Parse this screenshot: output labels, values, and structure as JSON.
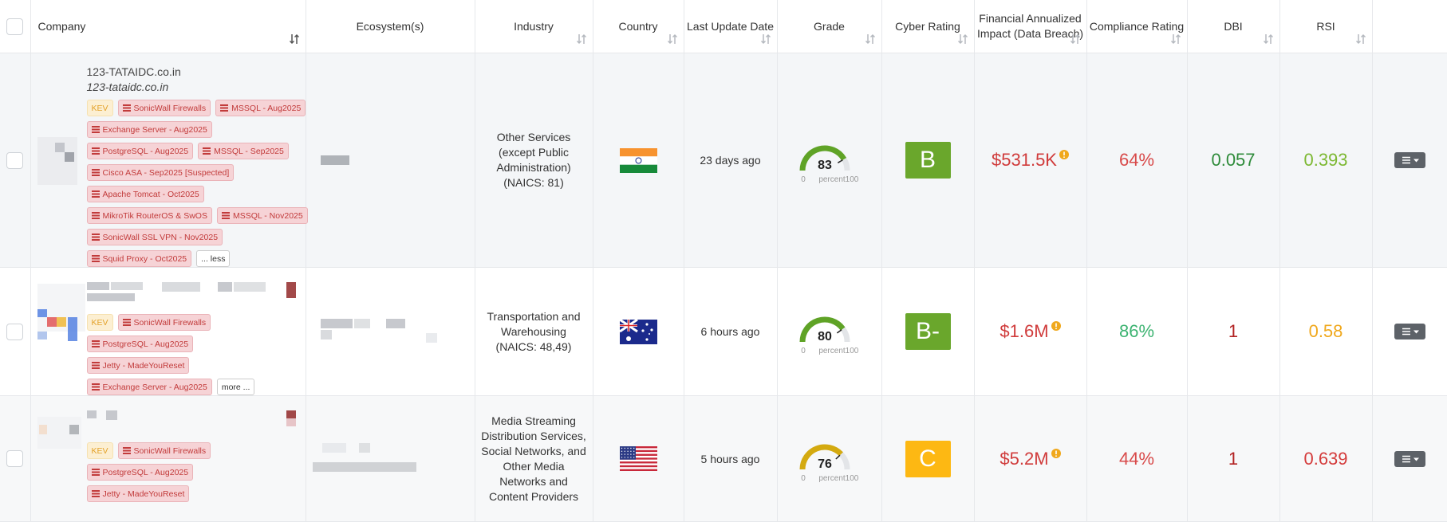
{
  "header": {
    "columns": [
      "Company",
      "Ecosystem(s)",
      "Industry",
      "Country",
      "Last Update Date",
      "Grade",
      "Cyber Rating",
      "Financial Annualized Impact (Data Breach)",
      "Compliance Rating",
      "DBI",
      "RSI"
    ]
  },
  "gauge_scale": {
    "min": 0,
    "unit": "percent",
    "max": 100
  },
  "rows": [
    {
      "company": {
        "name": "123-TATAIDC.co.in",
        "domain": "123-tataidc.co.in",
        "tags": [
          [
            {
              "text": "KEV",
              "kind": "kev"
            },
            {
              "text": "SonicWall Firewalls",
              "kind": "vuln"
            },
            {
              "text": "MSSQL - Aug2025",
              "kind": "vuln"
            }
          ],
          [
            {
              "text": "Exchange Server - Aug2025",
              "kind": "vuln"
            }
          ],
          [
            {
              "text": "PostgreSQL - Aug2025",
              "kind": "vuln"
            },
            {
              "text": "MSSQL - Sep2025",
              "kind": "vuln"
            }
          ],
          [
            {
              "text": "Cisco ASA - Sep2025 [Suspected]",
              "kind": "vuln"
            }
          ],
          [
            {
              "text": "Apache Tomcat - Oct2025",
              "kind": "vuln"
            }
          ],
          [
            {
              "text": "MikroTik RouterOS & SwOS",
              "kind": "vuln"
            },
            {
              "text": "MSSQL - Nov2025",
              "kind": "vuln"
            }
          ],
          [
            {
              "text": "SonicWall SSL VPN - Nov2025",
              "kind": "vuln"
            }
          ],
          [
            {
              "text": "Squid Proxy - Oct2025",
              "kind": "vuln"
            },
            {
              "text": "... less",
              "kind": "toggle"
            }
          ]
        ]
      },
      "industry": "Other Services (except Public Administration) (NAICS: 81)",
      "last_update": "23 days ago",
      "grade": {
        "value": 83,
        "color": "#5fa326"
      },
      "cyber_rating": {
        "text": "B",
        "color": "#6aa72c"
      },
      "financial": {
        "text": "$531.5K",
        "color": "#d03b3b"
      },
      "compliance": {
        "text": "64%",
        "color": "#d84a4a"
      },
      "dbi": {
        "text": "0.057",
        "color": "#2e8b3a"
      },
      "rsi": {
        "text": "0.393",
        "color": "#7cb832"
      }
    },
    {
      "company": {
        "tags": [
          [
            {
              "text": "KEV",
              "kind": "kev"
            },
            {
              "text": "SonicWall Firewalls",
              "kind": "vuln"
            }
          ],
          [
            {
              "text": "PostgreSQL - Aug2025",
              "kind": "vuln"
            }
          ],
          [
            {
              "text": "Jetty - MadeYouReset",
              "kind": "vuln"
            }
          ],
          [
            {
              "text": "Exchange Server - Aug2025",
              "kind": "vuln"
            },
            {
              "text": "more ...",
              "kind": "toggle"
            }
          ]
        ]
      },
      "industry": "Transportation and Warehousing (NAICS: 48,49)",
      "last_update": "6 hours ago",
      "grade": {
        "value": 80,
        "color": "#5fa326"
      },
      "cyber_rating": {
        "text": "B-",
        "color": "#6aa72c"
      },
      "financial": {
        "text": "$1.6M",
        "color": "#d03b3b"
      },
      "compliance": {
        "text": "86%",
        "color": "#3cb371"
      },
      "dbi": {
        "text": "1",
        "color": "#b22222"
      },
      "rsi": {
        "text": "0.58",
        "color": "#f0a81c"
      }
    },
    {
      "company": {
        "tags": [
          [
            {
              "text": "KEV",
              "kind": "kev"
            },
            {
              "text": "SonicWall Firewalls",
              "kind": "vuln"
            }
          ],
          [
            {
              "text": "PostgreSQL - Aug2025",
              "kind": "vuln"
            }
          ],
          [
            {
              "text": "Jetty - MadeYouReset",
              "kind": "vuln"
            }
          ]
        ]
      },
      "industry": "Media Streaming Distribution Services, Social Networks, and Other Media Networks and Content Providers",
      "last_update": "5 hours ago",
      "grade": {
        "value": 76,
        "color": "#d4aa10"
      },
      "cyber_rating": {
        "text": "C",
        "color": "#fdb813"
      },
      "financial": {
        "text": "$5.2M",
        "color": "#d03b3b"
      },
      "compliance": {
        "text": "44%",
        "color": "#d84a4a"
      },
      "dbi": {
        "text": "1",
        "color": "#b22222"
      },
      "rsi": {
        "text": "0.639",
        "color": "#d43b3b"
      }
    }
  ]
}
